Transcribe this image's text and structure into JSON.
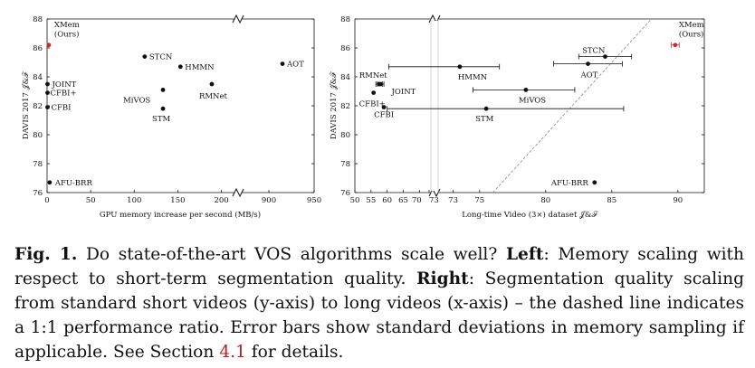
{
  "chart_data": [
    {
      "type": "scatter",
      "name": "left",
      "xlabel": "GPU memory increase per second (MB/s)",
      "ylabel": "DAVIS 2017 𝒥&ℱ",
      "ylim": [
        76,
        88
      ],
      "yticks": [
        "76",
        "78",
        "80",
        "82",
        "84",
        "86",
        "88"
      ],
      "xticks_low": [
        "0",
        "50",
        "100",
        "150",
        "200"
      ],
      "xticks_high": [
        "900",
        "950"
      ],
      "xlim_low": [
        0,
        215
      ],
      "xlim_high": [
        870,
        950
      ],
      "points": [
        {
          "label": "XMem\n(Ours)",
          "x": 2,
          "y": 86.2,
          "highlight": true
        },
        {
          "label": "STCN",
          "x": 112,
          "y": 85.4
        },
        {
          "label": "HMMN",
          "x": 153,
          "y": 84.7
        },
        {
          "label": "AOT",
          "x": 915,
          "y": 84.9
        },
        {
          "label": "RMNet",
          "x": 189,
          "y": 83.5
        },
        {
          "label": "MiVOS",
          "x": 133,
          "y": 83.1
        },
        {
          "label": "JOINT",
          "x": 0.5,
          "y": 83.5
        },
        {
          "label": "CFBI+",
          "x": 0.5,
          "y": 82.9
        },
        {
          "label": "CFBI",
          "x": 0.5,
          "y": 81.9
        },
        {
          "label": "STM",
          "x": 133,
          "y": 81.8
        },
        {
          "label": "AFU-BRR",
          "x": 3,
          "y": 76.7
        }
      ]
    },
    {
      "type": "scatter",
      "name": "right",
      "xlabel": "Long-time Video (3×) dataset 𝒥&ℱ",
      "ylabel": "DAVIS 2017 𝒥&ℱ",
      "ylim": [
        76,
        88
      ],
      "yticks": [
        "76",
        "78",
        "80",
        "82",
        "84",
        "86",
        "88"
      ],
      "xticks_low": [
        "50",
        "55",
        "60",
        "65",
        "70",
        "73"
      ],
      "xticks_high": [
        "73",
        "75",
        "80",
        "85",
        "90"
      ],
      "xlim_low": [
        50,
        73
      ],
      "xlim_high": [
        72,
        92
      ],
      "diagonal": [
        [
          76,
          76
        ],
        [
          88,
          88
        ]
      ],
      "points": [
        {
          "label": "XMem\n(Ours)",
          "x": 89.8,
          "y": 86.2,
          "err": [
            89.5,
            90.1
          ],
          "highlight": true
        },
        {
          "label": "STCN",
          "x": 84.5,
          "y": 85.4,
          "err": [
            82.5,
            86.5
          ]
        },
        {
          "label": "HMMN",
          "x": 73.5,
          "y": 84.7,
          "err": [
            60.5,
            76.5
          ]
        },
        {
          "label": "AOT",
          "x": 83.2,
          "y": 84.9,
          "err": [
            80.6,
            85.8
          ]
        },
        {
          "label": "RMNet",
          "x": 57.5,
          "y": 83.5,
          "err": [
            56.5,
            58.5
          ]
        },
        {
          "label": "JOINT",
          "x": 58,
          "y": 83.5,
          "err": [
            57,
            59
          ]
        },
        {
          "label": "CFBI+",
          "x": 55.8,
          "y": 82.9
        },
        {
          "label": "MiVOS",
          "x": 78.5,
          "y": 83.1,
          "err": [
            74.5,
            82.2
          ]
        },
        {
          "label": "CFBI",
          "x": 59,
          "y": 81.9
        },
        {
          "label": "STM",
          "x": 75.5,
          "y": 81.8,
          "err": [
            60,
            85.9
          ]
        },
        {
          "label": "AFU-BRR",
          "x": 83.7,
          "y": 76.7
        }
      ]
    }
  ],
  "caption": {
    "fig_label": "Fig. 1.",
    "part1": " Do state-of-the-art VOS algorithms scale well? ",
    "left_bold": "Left",
    "part2": ": Memory scaling with respect to short-term segmentation quality. ",
    "right_bold": "Right",
    "part3": ": Segmentation quality scaling from standard short videos (y-axis) to long videos (x-axis) – the dashed line indicates a 1:1 performance ratio. Error bars show standard deviations in memory sampling if applicable. See Section ",
    "section_ref": "4.1",
    "part4": " for details."
  }
}
